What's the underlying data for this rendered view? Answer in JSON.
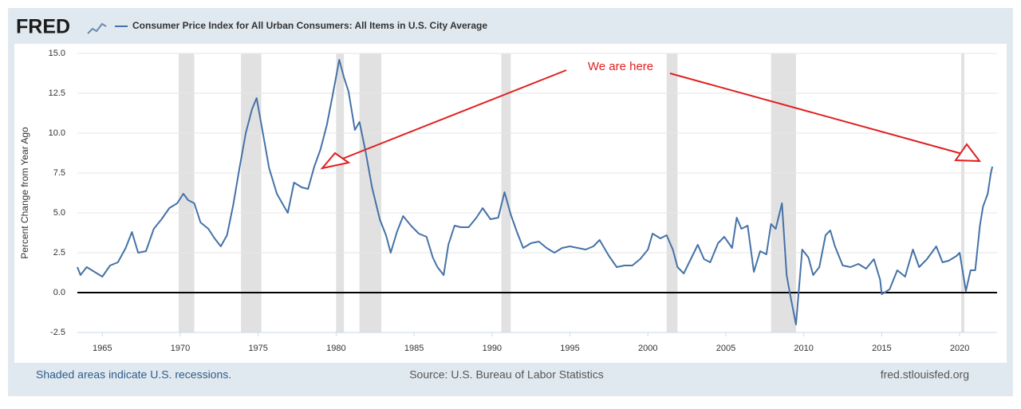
{
  "logo": "FRED",
  "chart_data": {
    "type": "line",
    "series": [
      {
        "name": "Consumer Price Index for All Urban Consumers: All Items in U.S. City Average",
        "color": "#4572a7",
        "x": [
          1963.4,
          1963.6,
          1964.0,
          1964.5,
          1965.0,
          1965.5,
          1966.0,
          1966.5,
          1966.9,
          1967.3,
          1967.8,
          1968.3,
          1968.8,
          1969.3,
          1969.8,
          1970.2,
          1970.5,
          1970.9,
          1971.3,
          1971.8,
          1972.2,
          1972.6,
          1973.0,
          1973.4,
          1973.8,
          1974.2,
          1974.6,
          1974.9,
          1975.3,
          1975.7,
          1976.2,
          1976.6,
          1976.9,
          1977.3,
          1977.8,
          1978.2,
          1978.6,
          1979.0,
          1979.4,
          1979.8,
          1980.2,
          1980.5,
          1980.8,
          1981.2,
          1981.5,
          1981.9,
          1982.3,
          1982.8,
          1983.2,
          1983.5,
          1983.9,
          1984.3,
          1984.8,
          1985.3,
          1985.8,
          1986.2,
          1986.5,
          1986.9,
          1987.2,
          1987.6,
          1988.0,
          1988.5,
          1989.0,
          1989.4,
          1989.9,
          1990.4,
          1990.8,
          1991.2,
          1991.6,
          1992.0,
          1992.5,
          1993.0,
          1993.5,
          1994.0,
          1994.5,
          1995.0,
          1995.5,
          1996.0,
          1996.5,
          1996.9,
          1997.5,
          1998.0,
          1998.5,
          1999.0,
          1999.5,
          2000.0,
          2000.3,
          2000.8,
          2001.2,
          2001.6,
          2001.9,
          2002.3,
          2002.8,
          2003.2,
          2003.6,
          2004.0,
          2004.5,
          2004.9,
          2005.4,
          2005.7,
          2006.0,
          2006.4,
          2006.8,
          2007.2,
          2007.6,
          2007.9,
          2008.2,
          2008.6,
          2008.9,
          2009.1,
          2009.5,
          2009.9,
          2010.3,
          2010.6,
          2011.0,
          2011.4,
          2011.7,
          2012.0,
          2012.5,
          2013.0,
          2013.5,
          2014.0,
          2014.5,
          2014.9,
          2015.0,
          2015.5,
          2016.0,
          2016.5,
          2017.0,
          2017.4,
          2017.9,
          2018.5,
          2018.9,
          2019.3,
          2019.8,
          2020.0,
          2020.4,
          2020.7,
          2021.0,
          2021.3,
          2021.5,
          2021.8,
          2022.0,
          2022.1
        ],
        "values": [
          1.6,
          1.1,
          1.6,
          1.3,
          1.0,
          1.7,
          1.9,
          2.8,
          3.8,
          2.5,
          2.6,
          4.0,
          4.6,
          5.3,
          5.6,
          6.2,
          5.8,
          5.6,
          4.4,
          4.0,
          3.4,
          2.9,
          3.6,
          5.5,
          7.8,
          10.0,
          11.5,
          12.2,
          10.0,
          7.8,
          6.2,
          5.5,
          5.0,
          6.9,
          6.6,
          6.5,
          7.9,
          9.0,
          10.5,
          12.5,
          14.6,
          13.5,
          12.6,
          10.2,
          10.7,
          8.8,
          6.6,
          4.6,
          3.6,
          2.5,
          3.8,
          4.8,
          4.2,
          3.7,
          3.5,
          2.2,
          1.6,
          1.1,
          3.0,
          4.2,
          4.1,
          4.1,
          4.7,
          5.3,
          4.6,
          4.7,
          6.3,
          4.9,
          3.8,
          2.8,
          3.1,
          3.2,
          2.8,
          2.5,
          2.8,
          2.9,
          2.8,
          2.7,
          2.9,
          3.3,
          2.3,
          1.6,
          1.7,
          1.7,
          2.1,
          2.7,
          3.7,
          3.4,
          3.6,
          2.7,
          1.6,
          1.2,
          2.2,
          3.0,
          2.1,
          1.9,
          3.1,
          3.5,
          2.8,
          4.7,
          4.0,
          4.2,
          1.3,
          2.6,
          2.4,
          4.3,
          4.0,
          5.6,
          1.1,
          0.0,
          -2.0,
          2.7,
          2.2,
          1.1,
          1.6,
          3.6,
          3.9,
          2.9,
          1.7,
          1.6,
          1.8,
          1.5,
          2.1,
          0.8,
          -0.1,
          0.2,
          1.4,
          1.0,
          2.7,
          1.6,
          2.1,
          2.9,
          1.9,
          2.0,
          2.3,
          2.5,
          0.1,
          1.4,
          1.4,
          4.2,
          5.4,
          6.2,
          7.5,
          7.9
        ]
      }
    ],
    "recessions": [
      [
        1969.9,
        1970.9
      ],
      [
        1973.9,
        1975.2
      ],
      [
        1980.0,
        1980.5
      ],
      [
        1981.5,
        1982.9
      ],
      [
        1990.6,
        1991.2
      ],
      [
        2001.2,
        2001.9
      ],
      [
        2007.9,
        2009.5
      ],
      [
        2020.1,
        2020.3
      ]
    ],
    "xlim": [
      1963.4,
      2022.4
    ],
    "xticks": [
      1965,
      1970,
      1975,
      1980,
      1985,
      1990,
      1995,
      2000,
      2005,
      2010,
      2015,
      2020
    ],
    "ylim": [
      -2.5,
      15
    ],
    "yticks": [
      {
        "value": 15,
        "label": "15.0"
      },
      12.5,
      {
        "value": 10,
        "label": "10.0"
      },
      7.5,
      {
        "value": 5,
        "label": "5.0"
      },
      2.5,
      {
        "value": 0,
        "label": "0.0"
      },
      -2.5
    ],
    "grid": true,
    "ylabel": "Percent Change from Year Ago",
    "annotation": "We are here",
    "footer_left": "Shaded areas indicate U.S. recessions.",
    "footer_center": "Source: U.S. Bureau of Labor Statistics",
    "footer_right": "fred.stlouisfed.org"
  }
}
